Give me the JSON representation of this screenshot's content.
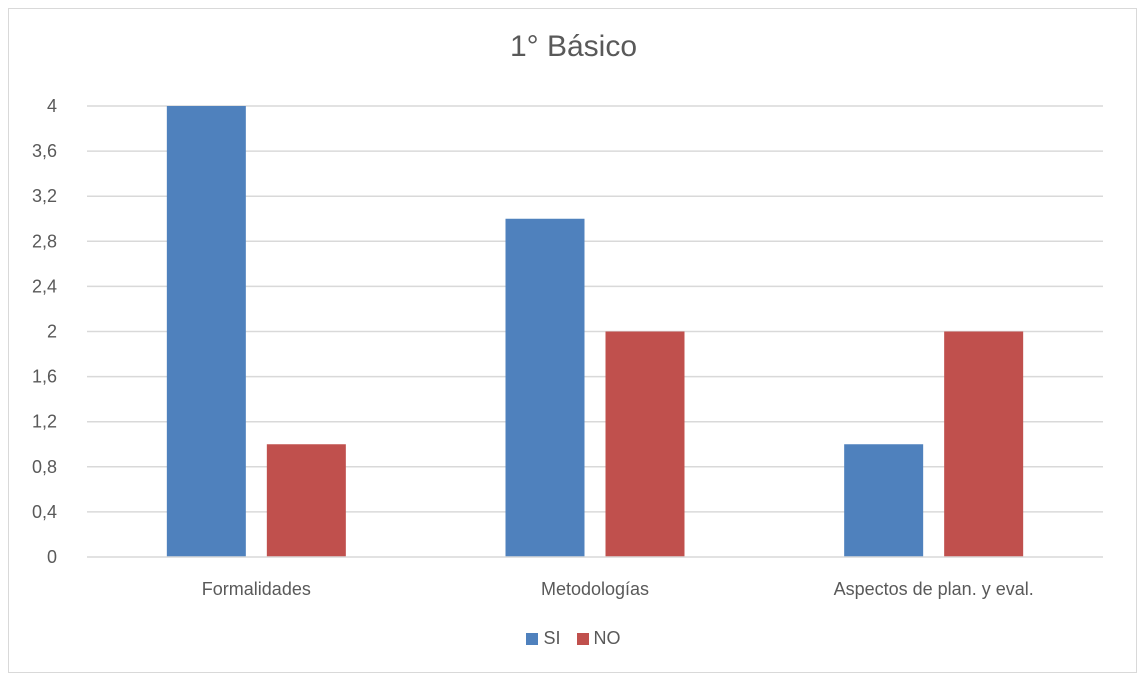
{
  "chart_data": {
    "type": "bar",
    "title": "1° Básico",
    "categories": [
      "Formalidades",
      "Metodologías",
      "Aspectos de plan. y eval."
    ],
    "series": [
      {
        "name": "SI",
        "values": [
          4,
          3,
          1
        ],
        "color": "#4f81bd"
      },
      {
        "name": "NO",
        "values": [
          1,
          2,
          2
        ],
        "color": "#c0504d"
      }
    ],
    "ylim": [
      0,
      4
    ],
    "yticks": [
      "0",
      "0,4",
      "0,8",
      "1,2",
      "1,6",
      "2",
      "2,4",
      "2,8",
      "3,2",
      "3,6",
      "4"
    ],
    "xlabel": "",
    "ylabel": "",
    "grid": true,
    "legend_position": "bottom"
  }
}
